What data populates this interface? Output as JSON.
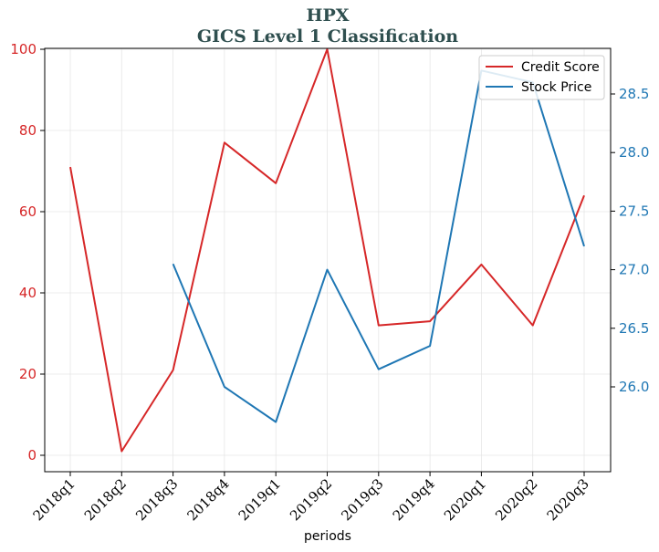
{
  "chart_data": {
    "type": "line",
    "title_line1": "HPX",
    "title_line2": "GICS Level 1 Classification",
    "xlabel": "periods",
    "categories": [
      "2018q1",
      "2018q2",
      "2018q3",
      "2018q4",
      "2019q1",
      "2019q2",
      "2019q3",
      "2019q4",
      "2020q1",
      "2020q2",
      "2020q3"
    ],
    "series": [
      {
        "name": "Credit Score",
        "axis": "left",
        "color": "#d62728",
        "values": [
          71,
          1,
          21,
          77,
          67,
          100,
          32,
          33,
          47,
          32,
          64
        ]
      },
      {
        "name": "Stock Price",
        "axis": "right",
        "color": "#1f77b4",
        "values": [
          null,
          null,
          27.05,
          26.0,
          25.7,
          27.0,
          26.15,
          26.35,
          28.7,
          28.6,
          27.2
        ]
      }
    ],
    "y_left": {
      "ticks": [
        0,
        20,
        40,
        60,
        80,
        100
      ],
      "tick_labels": [
        "0",
        "20",
        "40",
        "60",
        "80",
        "100"
      ],
      "color": "#d62728"
    },
    "y_right": {
      "ticks": [
        26.0,
        26.5,
        27.0,
        27.5,
        28.0,
        28.5
      ],
      "tick_labels": [
        "26.0",
        "26.5",
        "27.0",
        "27.5",
        "28.0",
        "28.5"
      ],
      "color": "#1f77b4"
    },
    "grid": true,
    "legend_position": "top-right"
  }
}
